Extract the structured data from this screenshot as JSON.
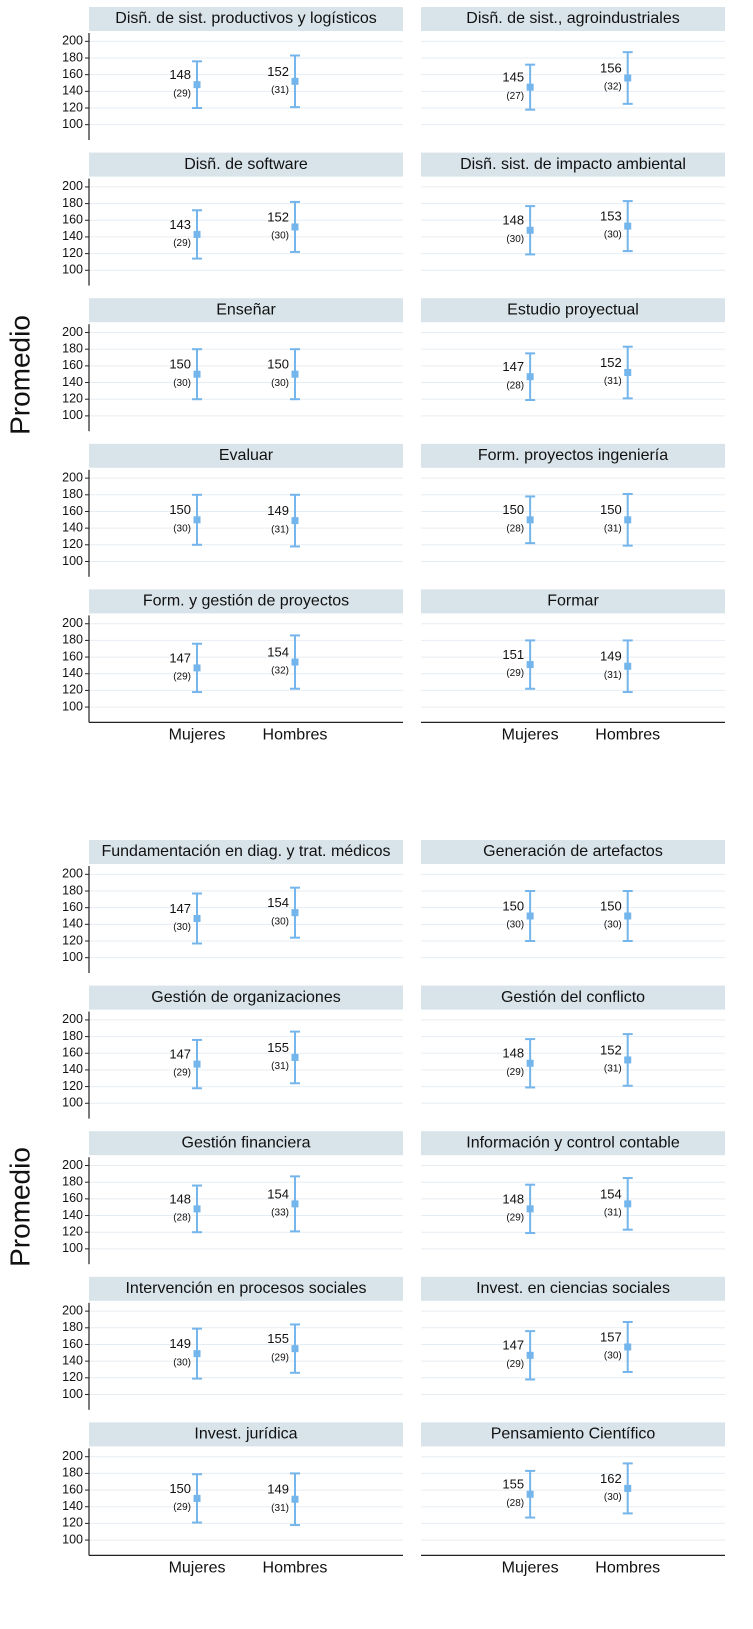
{
  "y_labels": [
    "Promedio",
    "Promedio"
  ],
  "chart_data": [
    {
      "type": "errorbar",
      "title": "Disñ. de sist. productivos y logísticos",
      "categories": [
        "Mujeres",
        "Hombres"
      ],
      "values": [
        148,
        152
      ],
      "errors": [
        28,
        31
      ],
      "n_labels": [
        "(29)",
        "(31)"
      ],
      "ylim": [
        90,
        210
      ],
      "yticks": [
        100,
        120,
        140,
        160,
        180,
        200
      ]
    },
    {
      "type": "errorbar",
      "title": "Disñ. de sist., agroindustriales",
      "categories": [
        "Mujeres",
        "Hombres"
      ],
      "values": [
        145,
        156
      ],
      "errors": [
        27,
        31
      ],
      "n_labels": [
        "(27)",
        "(32)"
      ],
      "ylim": [
        90,
        210
      ],
      "yticks": [
        100,
        120,
        140,
        160,
        180,
        200
      ]
    },
    {
      "type": "errorbar",
      "title": "Disñ. de software",
      "categories": [
        "Mujeres",
        "Hombres"
      ],
      "values": [
        143,
        152
      ],
      "errors": [
        29,
        30
      ],
      "n_labels": [
        "(29)",
        "(30)"
      ],
      "ylim": [
        90,
        210
      ],
      "yticks": [
        100,
        120,
        140,
        160,
        180,
        200
      ]
    },
    {
      "type": "errorbar",
      "title": "Disñ. sist. de impacto ambiental",
      "categories": [
        "Mujeres",
        "Hombres"
      ],
      "values": [
        148,
        153
      ],
      "errors": [
        29,
        30
      ],
      "n_labels": [
        "(30)",
        "(30)"
      ],
      "ylim": [
        90,
        210
      ],
      "yticks": [
        100,
        120,
        140,
        160,
        180,
        200
      ]
    },
    {
      "type": "errorbar",
      "title": "Enseñar",
      "categories": [
        "Mujeres",
        "Hombres"
      ],
      "values": [
        150,
        150
      ],
      "errors": [
        30,
        30
      ],
      "n_labels": [
        "(30)",
        "(30)"
      ],
      "ylim": [
        90,
        210
      ],
      "yticks": [
        100,
        120,
        140,
        160,
        180,
        200
      ]
    },
    {
      "type": "errorbar",
      "title": "Estudio proyectual",
      "categories": [
        "Mujeres",
        "Hombres"
      ],
      "values": [
        147,
        152
      ],
      "errors": [
        28,
        31
      ],
      "n_labels": [
        "(28)",
        "(31)"
      ],
      "ylim": [
        90,
        210
      ],
      "yticks": [
        100,
        120,
        140,
        160,
        180,
        200
      ]
    },
    {
      "type": "errorbar",
      "title": "Evaluar",
      "categories": [
        "Mujeres",
        "Hombres"
      ],
      "values": [
        150,
        149
      ],
      "errors": [
        30,
        31
      ],
      "n_labels": [
        "(30)",
        "(31)"
      ],
      "ylim": [
        90,
        210
      ],
      "yticks": [
        100,
        120,
        140,
        160,
        180,
        200
      ]
    },
    {
      "type": "errorbar",
      "title": "Form. proyectos ingeniería",
      "categories": [
        "Mujeres",
        "Hombres"
      ],
      "values": [
        150,
        150
      ],
      "errors": [
        28,
        31
      ],
      "n_labels": [
        "(28)",
        "(31)"
      ],
      "ylim": [
        90,
        210
      ],
      "yticks": [
        100,
        120,
        140,
        160,
        180,
        200
      ]
    },
    {
      "type": "errorbar",
      "title": "Form. y gestión de proyectos",
      "categories": [
        "Mujeres",
        "Hombres"
      ],
      "values": [
        147,
        154
      ],
      "errors": [
        29,
        32
      ],
      "n_labels": [
        "(29)",
        "(32)"
      ],
      "ylim": [
        90,
        210
      ],
      "yticks": [
        100,
        120,
        140,
        160,
        180,
        200
      ]
    },
    {
      "type": "errorbar",
      "title": "Formar",
      "categories": [
        "Mujeres",
        "Hombres"
      ],
      "values": [
        151,
        149
      ],
      "errors": [
        29,
        31
      ],
      "n_labels": [
        "(29)",
        "(31)"
      ],
      "ylim": [
        90,
        210
      ],
      "yticks": [
        100,
        120,
        140,
        160,
        180,
        200
      ]
    },
    {
      "type": "errorbar",
      "title": "Fundamentación en diag. y trat. médicos",
      "categories": [
        "Mujeres",
        "Hombres"
      ],
      "values": [
        147,
        154
      ],
      "errors": [
        30,
        30
      ],
      "n_labels": [
        "(30)",
        "(30)"
      ],
      "ylim": [
        90,
        210
      ],
      "yticks": [
        100,
        120,
        140,
        160,
        180,
        200
      ]
    },
    {
      "type": "errorbar",
      "title": "Generación de artefactos",
      "categories": [
        "Mujeres",
        "Hombres"
      ],
      "values": [
        150,
        150
      ],
      "errors": [
        30,
        30
      ],
      "n_labels": [
        "(30)",
        "(30)"
      ],
      "ylim": [
        90,
        210
      ],
      "yticks": [
        100,
        120,
        140,
        160,
        180,
        200
      ]
    },
    {
      "type": "errorbar",
      "title": "Gestión de organizaciones",
      "categories": [
        "Mujeres",
        "Hombres"
      ],
      "values": [
        147,
        155
      ],
      "errors": [
        29,
        31
      ],
      "n_labels": [
        "(29)",
        "(31)"
      ],
      "ylim": [
        90,
        210
      ],
      "yticks": [
        100,
        120,
        140,
        160,
        180,
        200
      ]
    },
    {
      "type": "errorbar",
      "title": "Gestión del conflicto",
      "categories": [
        "Mujeres",
        "Hombres"
      ],
      "values": [
        148,
        152
      ],
      "errors": [
        29,
        31
      ],
      "n_labels": [
        "(29)",
        "(31)"
      ],
      "ylim": [
        90,
        210
      ],
      "yticks": [
        100,
        120,
        140,
        160,
        180,
        200
      ]
    },
    {
      "type": "errorbar",
      "title": "Gestión financiera",
      "categories": [
        "Mujeres",
        "Hombres"
      ],
      "values": [
        148,
        154
      ],
      "errors": [
        28,
        33
      ],
      "n_labels": [
        "(28)",
        "(33)"
      ],
      "ylim": [
        90,
        210
      ],
      "yticks": [
        100,
        120,
        140,
        160,
        180,
        200
      ]
    },
    {
      "type": "errorbar",
      "title": "Información y control contable",
      "categories": [
        "Mujeres",
        "Hombres"
      ],
      "values": [
        148,
        154
      ],
      "errors": [
        29,
        31
      ],
      "n_labels": [
        "(29)",
        "(31)"
      ],
      "ylim": [
        90,
        210
      ],
      "yticks": [
        100,
        120,
        140,
        160,
        180,
        200
      ]
    },
    {
      "type": "errorbar",
      "title": "Intervención en procesos sociales",
      "categories": [
        "Mujeres",
        "Hombres"
      ],
      "values": [
        149,
        155
      ],
      "errors": [
        30,
        29
      ],
      "n_labels": [
        "(30)",
        "(29)"
      ],
      "ylim": [
        90,
        210
      ],
      "yticks": [
        100,
        120,
        140,
        160,
        180,
        200
      ]
    },
    {
      "type": "errorbar",
      "title": "Invest. en ciencias sociales",
      "categories": [
        "Mujeres",
        "Hombres"
      ],
      "values": [
        147,
        157
      ],
      "errors": [
        29,
        30
      ],
      "n_labels": [
        "(29)",
        "(30)"
      ],
      "ylim": [
        90,
        210
      ],
      "yticks": [
        100,
        120,
        140,
        160,
        180,
        200
      ]
    },
    {
      "type": "errorbar",
      "title": "Invest. jurídica",
      "categories": [
        "Mujeres",
        "Hombres"
      ],
      "values": [
        150,
        149
      ],
      "errors": [
        29,
        31
      ],
      "n_labels": [
        "(29)",
        "(31)"
      ],
      "ylim": [
        90,
        210
      ],
      "yticks": [
        100,
        120,
        140,
        160,
        180,
        200
      ]
    },
    {
      "type": "errorbar",
      "title": "Pensamiento Científico",
      "categories": [
        "Mujeres",
        "Hombres"
      ],
      "values": [
        155,
        162
      ],
      "errors": [
        28,
        30
      ],
      "n_labels": [
        "(28)",
        "(30)"
      ],
      "ylim": [
        90,
        210
      ],
      "yticks": [
        100,
        120,
        140,
        160,
        180,
        200
      ]
    }
  ]
}
